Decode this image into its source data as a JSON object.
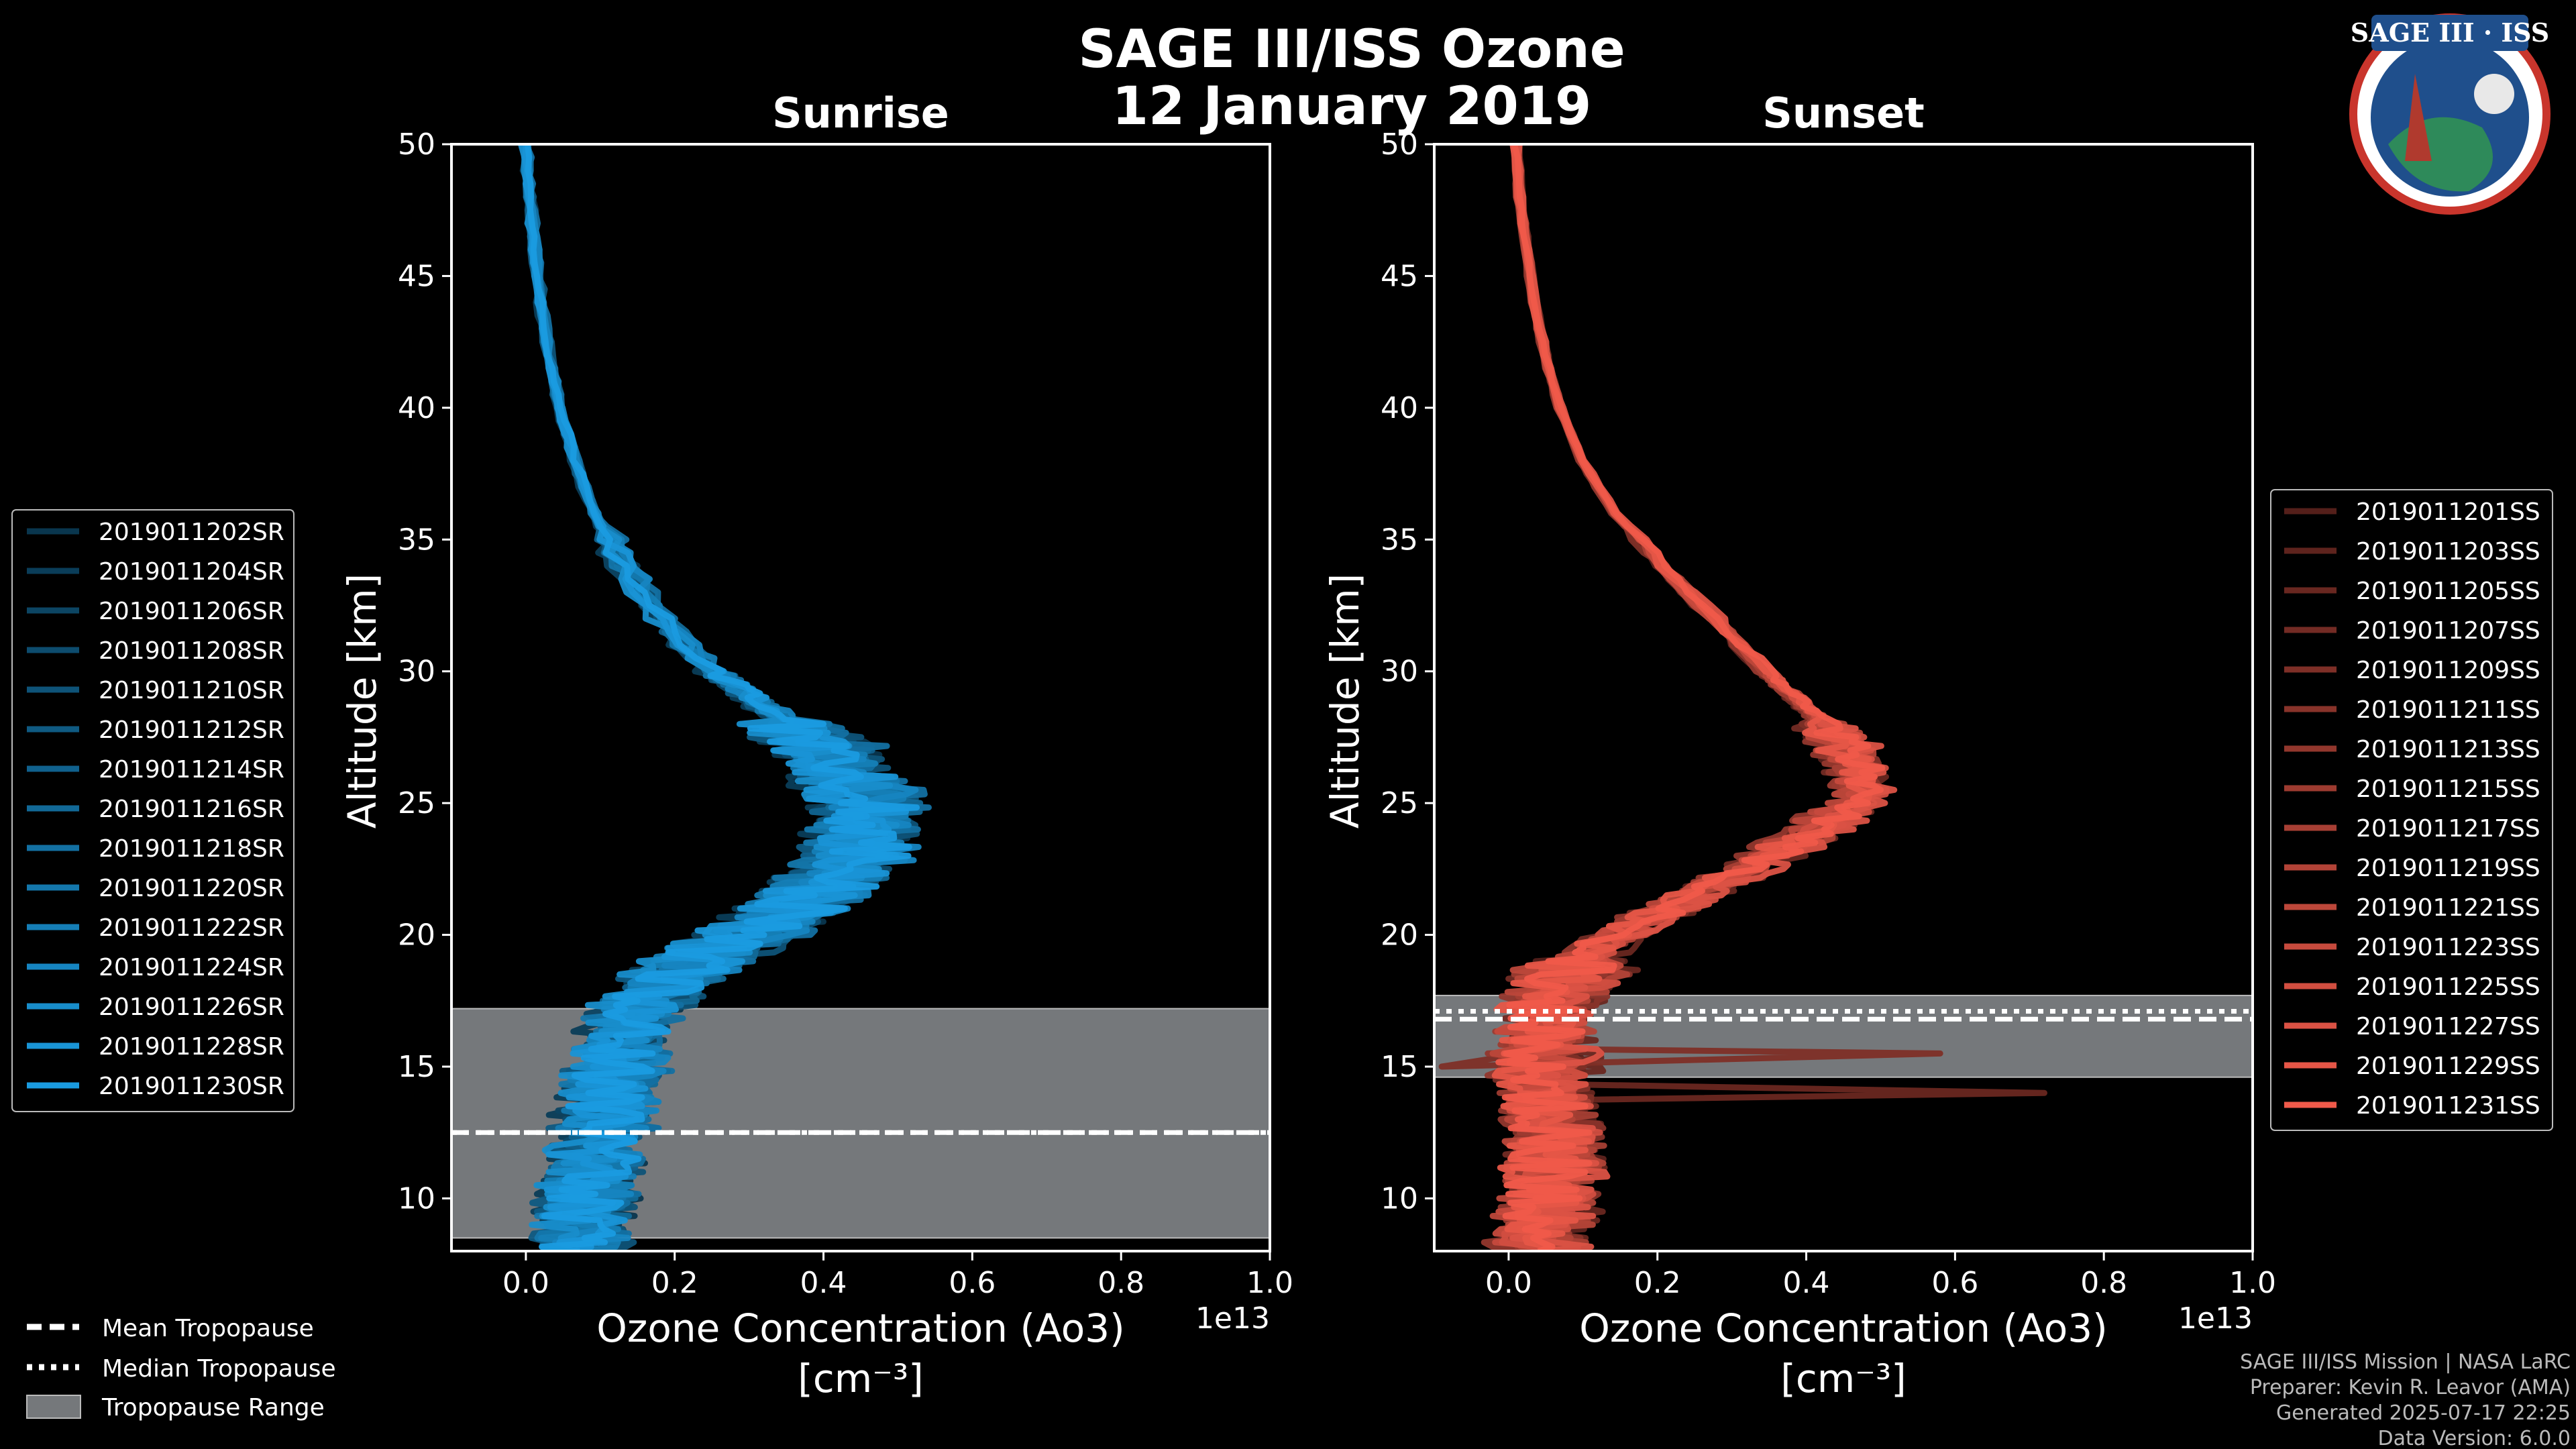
{
  "figure": {
    "title_line1": "SAGE III/ISS Ozone",
    "title_line2": "12 January 2019",
    "logo_text": "SAGE III · ISS",
    "credits": [
      "SAGE III/ISS Mission | NASA LaRC",
      "Preparer: Kevin R. Leavor (AMA)",
      "Generated 2025-07-17 22:25",
      "Data Version: 6.0.0"
    ]
  },
  "chart_data": [
    {
      "type": "line",
      "panel": "sunrise",
      "title": "Sunrise",
      "xlabel": "Ozone Concentration (Ao3)",
      "xunit": "[cm⁻³]",
      "ylabel": "Altitude [km]",
      "x_scale_note": "1e13",
      "xlim": [
        -0.1,
        1.0
      ],
      "ylim": [
        8,
        50
      ],
      "x_ticks": [
        "0.0",
        "0.2",
        "0.4",
        "0.6",
        "0.8",
        "1.0"
      ],
      "y_ticks": [
        "10",
        "15",
        "20",
        "25",
        "30",
        "35",
        "40",
        "45",
        "50"
      ],
      "color": "#1a9be0",
      "tropopause": {
        "mean": 12.5,
        "median": 12.5,
        "range": [
          8.5,
          17.2
        ]
      },
      "legend": [
        "2019011202SR",
        "2019011204SR",
        "2019011206SR",
        "2019011208SR",
        "2019011210SR",
        "2019011212SR",
        "2019011214SR",
        "2019011216SR",
        "2019011218SR",
        "2019011220SR",
        "2019011222SR",
        "2019011224SR",
        "2019011226SR",
        "2019011228SR",
        "2019011230SR"
      ],
      "mean_profile": {
        "altitude": [
          50,
          48,
          46,
          44,
          42,
          40,
          38,
          36,
          34,
          32,
          30,
          29,
          28,
          27,
          26,
          25,
          24,
          23,
          22,
          21,
          20,
          19,
          18,
          17,
          16,
          15,
          14,
          13,
          12,
          11,
          10,
          9,
          8
        ],
        "ozone": [
          0.0,
          0.005,
          0.012,
          0.02,
          0.03,
          0.045,
          0.065,
          0.09,
          0.13,
          0.18,
          0.25,
          0.3,
          0.35,
          0.4,
          0.43,
          0.45,
          0.45,
          0.44,
          0.4,
          0.35,
          0.29,
          0.23,
          0.18,
          0.14,
          0.13,
          0.12,
          0.11,
          0.1,
          0.1,
          0.09,
          0.08,
          0.08,
          0.07
        ]
      }
    },
    {
      "type": "line",
      "panel": "sunset",
      "title": "Sunset",
      "xlabel": "Ozone Concentration (Ao3)",
      "xunit": "[cm⁻³]",
      "ylabel": "Altitude [km]",
      "x_scale_note": "1e13",
      "xlim": [
        -0.1,
        1.0
      ],
      "ylim": [
        8,
        50
      ],
      "x_ticks": [
        "0.0",
        "0.2",
        "0.4",
        "0.6",
        "0.8",
        "1.0"
      ],
      "y_ticks": [
        "10",
        "15",
        "20",
        "25",
        "30",
        "35",
        "40",
        "45",
        "50"
      ],
      "color": "#f05a4a",
      "tropopause": {
        "mean": 16.8,
        "median": 17.1,
        "range": [
          14.6,
          17.7
        ]
      },
      "legend": [
        "2019011201SS",
        "2019011203SS",
        "2019011205SS",
        "2019011207SS",
        "2019011209SS",
        "2019011211SS",
        "2019011213SS",
        "2019011215SS",
        "2019011217SS",
        "2019011219SS",
        "2019011221SS",
        "2019011223SS",
        "2019011225SS",
        "2019011227SS",
        "2019011229SS",
        "2019011231SS"
      ],
      "mean_profile": {
        "altitude": [
          50,
          48,
          46,
          44,
          42,
          40,
          38,
          36,
          34,
          32,
          30,
          29,
          28,
          27,
          26,
          25,
          24,
          23,
          22,
          21,
          20,
          19,
          18,
          17,
          16,
          15,
          14,
          13,
          12,
          11,
          10,
          9,
          8
        ],
        "ozone": [
          0.01,
          0.015,
          0.025,
          0.035,
          0.05,
          0.07,
          0.1,
          0.145,
          0.21,
          0.28,
          0.35,
          0.39,
          0.43,
          0.46,
          0.48,
          0.47,
          0.42,
          0.36,
          0.29,
          0.22,
          0.15,
          0.1,
          0.07,
          0.05,
          0.05,
          0.05,
          0.05,
          0.06,
          0.07,
          0.06,
          0.05,
          0.05,
          0.04
        ]
      }
    }
  ],
  "tropopause_legend": {
    "mean": "Mean Tropopause",
    "median": "Median Tropopause",
    "range": "Tropopause Range"
  }
}
